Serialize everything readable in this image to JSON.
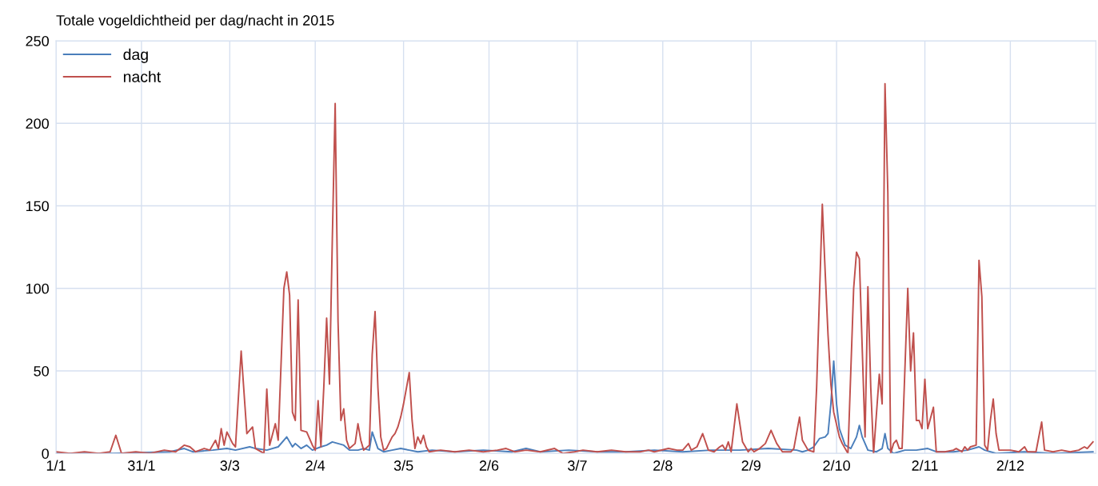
{
  "chart_data": {
    "type": "line",
    "title": "Totale vogeldichtheid per dag/nacht in 2015",
    "xlim": [
      "2015-01-01",
      "2016-01-01"
    ],
    "xticks": [
      {
        "value": "2015-01-01",
        "label": "1/1"
      },
      {
        "value": "2015-01-31",
        "label": "31/1"
      },
      {
        "value": "2015-03-03",
        "label": "3/3"
      },
      {
        "value": "2015-04-02",
        "label": "2/4"
      },
      {
        "value": "2015-05-03",
        "label": "3/5"
      },
      {
        "value": "2015-06-02",
        "label": "2/6"
      },
      {
        "value": "2015-07-03",
        "label": "3/7"
      },
      {
        "value": "2015-08-02",
        "label": "2/8"
      },
      {
        "value": "2015-09-02",
        "label": "2/9"
      },
      {
        "value": "2015-10-02",
        "label": "2/10"
      },
      {
        "value": "2015-11-02",
        "label": "2/11"
      },
      {
        "value": "2015-12-02",
        "label": "2/12"
      }
    ],
    "ylim": [
      0,
      250
    ],
    "yticks": [
      0,
      50,
      100,
      150,
      200,
      250
    ],
    "grid": true,
    "legend": "top left",
    "marker": "none",
    "line_style": "solid",
    "series": [
      {
        "name": "dag",
        "color": "#4a7ebb",
        "x": [
          "2015-01-01",
          "2015-01-21",
          "2015-02-10",
          "2015-02-15",
          "2015-02-18",
          "2015-02-25",
          "2015-03-02",
          "2015-03-05",
          "2015-03-10",
          "2015-03-12",
          "2015-03-16",
          "2015-03-20",
          "2015-03-23",
          "2015-03-25",
          "2015-03-26",
          "2015-03-28",
          "2015-03-30",
          "2015-04-01",
          "2015-04-04",
          "2015-04-06",
          "2015-04-08",
          "2015-04-10",
          "2015-04-12",
          "2015-04-14",
          "2015-04-17",
          "2015-04-19",
          "2015-04-21",
          "2015-04-22",
          "2015-04-24",
          "2015-04-26",
          "2015-04-29",
          "2015-05-02",
          "2015-05-05",
          "2015-05-08",
          "2015-05-13",
          "2015-05-21",
          "2015-05-31",
          "2015-06-10",
          "2015-06-15",
          "2015-06-20",
          "2015-06-30",
          "2015-07-10",
          "2015-07-20",
          "2015-07-30",
          "2015-08-09",
          "2015-08-19",
          "2015-08-29",
          "2015-09-08",
          "2015-09-18",
          "2015-09-20",
          "2015-09-22",
          "2015-09-24",
          "2015-09-26",
          "2015-09-28",
          "2015-09-29",
          "2015-09-30",
          "2015-10-01",
          "2015-10-02",
          "2015-10-03",
          "2015-10-05",
          "2015-10-07",
          "2015-10-09",
          "2015-10-10",
          "2015-10-11",
          "2015-10-13",
          "2015-10-16",
          "2015-10-18",
          "2015-10-19",
          "2015-10-20",
          "2015-10-22",
          "2015-10-26",
          "2015-10-30",
          "2015-11-03",
          "2015-11-06",
          "2015-11-12",
          "2015-11-17",
          "2015-11-21",
          "2015-11-23",
          "2015-11-27",
          "2015-12-07",
          "2015-12-17",
          "2015-12-31"
        ],
        "values": [
          0,
          0,
          1,
          3,
          1,
          2,
          3,
          2,
          4,
          3,
          2,
          4,
          10,
          4,
          6,
          3,
          5,
          2,
          4,
          5,
          7,
          6,
          5,
          2,
          2,
          3,
          2,
          13,
          3,
          1,
          2,
          3,
          2,
          1,
          2,
          1,
          2,
          1,
          3,
          1,
          2,
          1,
          1,
          2,
          1,
          2,
          2,
          3,
          2,
          1,
          2,
          4,
          9,
          10,
          12,
          30,
          56,
          30,
          15,
          5,
          3,
          10,
          17,
          10,
          2,
          1,
          3,
          12,
          3,
          0,
          2,
          2,
          3,
          1,
          1,
          2,
          4,
          2,
          0,
          1,
          0,
          1
        ]
      },
      {
        "name": "nacht",
        "color": "#c0504d",
        "x": [
          "2015-01-01",
          "2015-01-06",
          "2015-01-11",
          "2015-01-16",
          "2015-01-20",
          "2015-01-22",
          "2015-01-24",
          "2015-01-29",
          "2015-02-03",
          "2015-02-08",
          "2015-02-12",
          "2015-02-15",
          "2015-02-17",
          "2015-02-19",
          "2015-02-22",
          "2015-02-24",
          "2015-02-26",
          "2015-02-27",
          "2015-02-28",
          "2015-03-01",
          "2015-03-02",
          "2015-03-04",
          "2015-03-05",
          "2015-03-07",
          "2015-03-09",
          "2015-03-11",
          "2015-03-12",
          "2015-03-14",
          "2015-03-15",
          "2015-03-16",
          "2015-03-17",
          "2015-03-19",
          "2015-03-20",
          "2015-03-22",
          "2015-03-23",
          "2015-03-24",
          "2015-03-25",
          "2015-03-26",
          "2015-03-27",
          "2015-03-28",
          "2015-03-30",
          "2015-04-01",
          "2015-04-02",
          "2015-04-03",
          "2015-04-04",
          "2015-04-05",
          "2015-04-06",
          "2015-04-07",
          "2015-04-08",
          "2015-04-09",
          "2015-04-10",
          "2015-04-11",
          "2015-04-12",
          "2015-04-13",
          "2015-04-14",
          "2015-04-16",
          "2015-04-17",
          "2015-04-18",
          "2015-04-19",
          "2015-04-21",
          "2015-04-22",
          "2015-04-23",
          "2015-04-24",
          "2015-04-25",
          "2015-04-26",
          "2015-04-27",
          "2015-04-29",
          "2015-04-30",
          "2015-05-01",
          "2015-05-02",
          "2015-05-03",
          "2015-05-05",
          "2015-05-06",
          "2015-05-07",
          "2015-05-08",
          "2015-05-09",
          "2015-05-10",
          "2015-05-11",
          "2015-05-12",
          "2015-05-16",
          "2015-05-21",
          "2015-05-26",
          "2015-05-31",
          "2015-06-05",
          "2015-06-08",
          "2015-06-11",
          "2015-06-15",
          "2015-06-20",
          "2015-06-25",
          "2015-06-28",
          "2015-07-02",
          "2015-07-05",
          "2015-07-10",
          "2015-07-15",
          "2015-07-20",
          "2015-07-25",
          "2015-07-28",
          "2015-07-30",
          "2015-08-04",
          "2015-08-07",
          "2015-08-09",
          "2015-08-11",
          "2015-08-12",
          "2015-08-14",
          "2015-08-16",
          "2015-08-18",
          "2015-08-20",
          "2015-08-22",
          "2015-08-23",
          "2015-08-24",
          "2015-08-25",
          "2015-08-26",
          "2015-08-28",
          "2015-08-30",
          "2015-08-31",
          "2015-09-01",
          "2015-09-02",
          "2015-09-03",
          "2015-09-05",
          "2015-09-07",
          "2015-09-09",
          "2015-09-11",
          "2015-09-13",
          "2015-09-16",
          "2015-09-17",
          "2015-09-19",
          "2015-09-20",
          "2015-09-22",
          "2015-09-24",
          "2015-09-25",
          "2015-09-27",
          "2015-09-28",
          "2015-09-29",
          "2015-09-30",
          "2015-10-01",
          "2015-10-03",
          "2015-10-04",
          "2015-10-06",
          "2015-10-08",
          "2015-10-09",
          "2015-10-10",
          "2015-10-12",
          "2015-10-13",
          "2015-10-14",
          "2015-10-15",
          "2015-10-17",
          "2015-10-18",
          "2015-10-19",
          "2015-10-20",
          "2015-10-21",
          "2015-10-22",
          "2015-10-23",
          "2015-10-24",
          "2015-10-25",
          "2015-10-27",
          "2015-10-28",
          "2015-10-29",
          "2015-10-30",
          "2015-10-31",
          "2015-11-01",
          "2015-11-02",
          "2015-11-03",
          "2015-11-05",
          "2015-11-06",
          "2015-11-09",
          "2015-11-12",
          "2015-11-13",
          "2015-11-15",
          "2015-11-16",
          "2015-11-17",
          "2015-11-18",
          "2015-11-20",
          "2015-11-21",
          "2015-11-22",
          "2015-11-23",
          "2015-11-24",
          "2015-11-25",
          "2015-11-26",
          "2015-11-27",
          "2015-11-28",
          "2015-12-02",
          "2015-12-05",
          "2015-12-07",
          "2015-12-08",
          "2015-12-11",
          "2015-12-13",
          "2015-12-14",
          "2015-12-17",
          "2015-12-20",
          "2015-12-23",
          "2015-12-26",
          "2015-12-28",
          "2015-12-29",
          "2015-12-31"
        ],
        "values": [
          1,
          0,
          1,
          0,
          1,
          11,
          0,
          1,
          0,
          2,
          1,
          5,
          4,
          1,
          3,
          2,
          8,
          3,
          15,
          5,
          13,
          6,
          4,
          62,
          12,
          16,
          3,
          1,
          0,
          39,
          5,
          18,
          8,
          100,
          110,
          96,
          25,
          20,
          93,
          14,
          13,
          5,
          2,
          32,
          4,
          40,
          82,
          42,
          130,
          212,
          80,
          20,
          27,
          8,
          3,
          6,
          18,
          8,
          2,
          5,
          60,
          86,
          40,
          10,
          2,
          3,
          10,
          12,
          16,
          22,
          30,
          49,
          20,
          3,
          10,
          6,
          11,
          4,
          1,
          2,
          1,
          2,
          1,
          2,
          3,
          1,
          2,
          1,
          3,
          0,
          1,
          2,
          1,
          2,
          1,
          1,
          2,
          1,
          3,
          2,
          2,
          6,
          2,
          4,
          12,
          2,
          1,
          4,
          5,
          2,
          7,
          1,
          30,
          7,
          4,
          1,
          3,
          1,
          3,
          6,
          14,
          6,
          1,
          1,
          3,
          22,
          8,
          2,
          1,
          40,
          151,
          110,
          72,
          42,
          25,
          10,
          6,
          0,
          100,
          122,
          118,
          10,
          101,
          40,
          0,
          48,
          30,
          224,
          158,
          0,
          6,
          8,
          3,
          3,
          100,
          50,
          73,
          20,
          20,
          15,
          45,
          15,
          28,
          1,
          1,
          2,
          3,
          1,
          4,
          2,
          4,
          5,
          117,
          95,
          5,
          2,
          20,
          33,
          12,
          2,
          2,
          1,
          4,
          1,
          1,
          19,
          2,
          1,
          2,
          1,
          2,
          4,
          3,
          7
        ]
      }
    ]
  }
}
